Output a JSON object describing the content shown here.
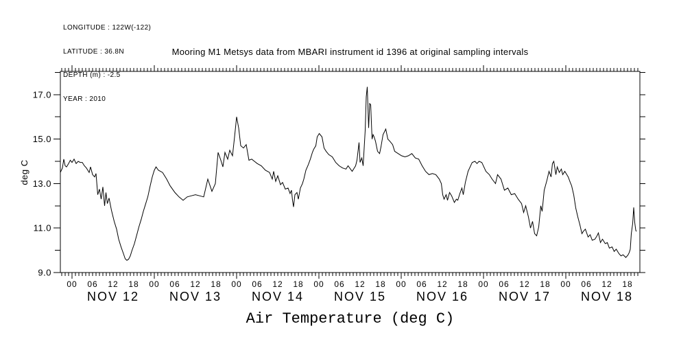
{
  "station_info": {
    "lines": [
      "LONGITUDE : 122W(-122)",
      "LATITUDE : 36.8N",
      "DEPTH (m) : -2.5",
      "YEAR : 2010"
    ]
  },
  "chart_data": {
    "type": "line",
    "title": "Mooring M1 Metsys data from MBARI instrument id 1396 at original sampling intervals",
    "xlabel": "Air Temperature (deg C)",
    "ylabel": "deg C",
    "line_color": "#000000",
    "background_color": "#ffffff",
    "grid": false,
    "legend": "none",
    "ylim": [
      9.0,
      18.05
    ],
    "x_unit": "hours since 2010-11-12 00:00",
    "xlim_hours": [
      -3.4,
      165.6
    ],
    "y_axis": {
      "ticks": [
        {
          "v": 9,
          "label": "9.0"
        },
        {
          "v": 10
        },
        {
          "v": 11,
          "label": "11.0"
        },
        {
          "v": 12
        },
        {
          "v": 13,
          "label": "13.0"
        },
        {
          "v": 14
        },
        {
          "v": 15,
          "label": "15.0"
        },
        {
          "v": 16
        },
        {
          "v": 17,
          "label": "17.0"
        },
        {
          "v": 18
        }
      ]
    },
    "x_axis": {
      "minor_tick_interval_hours": 1,
      "major_tick_interval_hours": 24,
      "hour_labels": [
        "00",
        "06",
        "12",
        "18"
      ],
      "hour_label_interval": 6,
      "days": [
        "NOV 12",
        "NOV 13",
        "NOV 14",
        "NOV 15",
        "NOV 16",
        "NOV 17",
        "NOV 18"
      ]
    },
    "series": [
      {
        "name": "air_temperature_deg_c",
        "points": [
          [
            -3.4,
            13.5
          ],
          [
            -2.8,
            13.7
          ],
          [
            -2.4,
            14.1
          ],
          [
            -2.0,
            13.8
          ],
          [
            -1.6,
            13.75
          ],
          [
            -1.0,
            13.9
          ],
          [
            -0.5,
            14.05
          ],
          [
            0,
            13.95
          ],
          [
            0.6,
            14.1
          ],
          [
            1.2,
            13.9
          ],
          [
            1.8,
            14.0
          ],
          [
            2.4,
            13.95
          ],
          [
            3.0,
            13.95
          ],
          [
            3.6,
            13.8
          ],
          [
            4.2,
            13.7
          ],
          [
            5.0,
            13.5
          ],
          [
            5.4,
            13.75
          ],
          [
            6.0,
            13.4
          ],
          [
            6.6,
            13.3
          ],
          [
            7.0,
            13.45
          ],
          [
            7.5,
            12.5
          ],
          [
            8.0,
            12.75
          ],
          [
            8.5,
            12.3
          ],
          [
            9.0,
            12.85
          ],
          [
            9.5,
            12.0
          ],
          [
            9.9,
            12.6
          ],
          [
            10.3,
            12.1
          ],
          [
            10.8,
            12.35
          ],
          [
            11.5,
            11.8
          ],
          [
            12.3,
            11.3
          ],
          [
            13.0,
            10.95
          ],
          [
            13.6,
            10.5
          ],
          [
            14.3,
            10.15
          ],
          [
            15.0,
            9.85
          ],
          [
            15.5,
            9.62
          ],
          [
            16.0,
            9.55
          ],
          [
            16.5,
            9.6
          ],
          [
            17.0,
            9.75
          ],
          [
            17.5,
            10.0
          ],
          [
            18.2,
            10.3
          ],
          [
            18.9,
            10.7
          ],
          [
            19.5,
            11.05
          ],
          [
            20.2,
            11.4
          ],
          [
            20.8,
            11.75
          ],
          [
            21.4,
            12.05
          ],
          [
            22.1,
            12.4
          ],
          [
            22.8,
            12.9
          ],
          [
            23.4,
            13.3
          ],
          [
            24.0,
            13.6
          ],
          [
            24.5,
            13.75
          ],
          [
            25.2,
            13.6
          ],
          [
            26.4,
            13.5
          ],
          [
            27.6,
            13.2
          ],
          [
            28.6,
            12.9
          ],
          [
            30.0,
            12.6
          ],
          [
            31.2,
            12.4
          ],
          [
            32.4,
            12.25
          ],
          [
            33.6,
            12.4
          ],
          [
            34.8,
            12.45
          ],
          [
            36.0,
            12.5
          ],
          [
            37.2,
            12.45
          ],
          [
            38.4,
            12.4
          ],
          [
            39.6,
            13.2
          ],
          [
            40.8,
            12.65
          ],
          [
            41.8,
            13.0
          ],
          [
            42.6,
            14.4
          ],
          [
            43.4,
            14.05
          ],
          [
            44.0,
            13.75
          ],
          [
            44.6,
            14.4
          ],
          [
            45.4,
            14.1
          ],
          [
            46.0,
            14.5
          ],
          [
            46.8,
            14.25
          ],
          [
            47.4,
            15.1
          ],
          [
            48.0,
            16.0
          ],
          [
            48.6,
            15.5
          ],
          [
            49.2,
            14.7
          ],
          [
            50.0,
            14.6
          ],
          [
            50.8,
            14.75
          ],
          [
            51.6,
            14.05
          ],
          [
            52.4,
            14.1
          ],
          [
            53.2,
            14.0
          ],
          [
            54.0,
            13.9
          ],
          [
            55.2,
            13.8
          ],
          [
            56.4,
            13.6
          ],
          [
            57.6,
            13.5
          ],
          [
            58.4,
            13.2
          ],
          [
            58.8,
            13.55
          ],
          [
            59.4,
            13.1
          ],
          [
            60.0,
            13.35
          ],
          [
            60.8,
            12.95
          ],
          [
            61.4,
            13.05
          ],
          [
            62.2,
            12.75
          ],
          [
            63.0,
            12.8
          ],
          [
            63.6,
            12.55
          ],
          [
            64.0,
            12.7
          ],
          [
            64.3,
            12.25
          ],
          [
            64.6,
            11.95
          ],
          [
            65.0,
            12.5
          ],
          [
            65.6,
            12.6
          ],
          [
            66.0,
            12.3
          ],
          [
            66.6,
            12.8
          ],
          [
            67.2,
            13.0
          ],
          [
            67.6,
            13.2
          ],
          [
            68.2,
            13.6
          ],
          [
            68.9,
            13.85
          ],
          [
            69.5,
            14.1
          ],
          [
            70.1,
            14.4
          ],
          [
            70.5,
            14.55
          ],
          [
            71.1,
            14.7
          ],
          [
            71.5,
            15.1
          ],
          [
            72.1,
            15.25
          ],
          [
            72.9,
            15.1
          ],
          [
            73.5,
            14.6
          ],
          [
            74.1,
            14.45
          ],
          [
            74.9,
            14.3
          ],
          [
            75.9,
            14.2
          ],
          [
            76.9,
            13.95
          ],
          [
            77.9,
            13.8
          ],
          [
            78.9,
            13.7
          ],
          [
            79.9,
            13.65
          ],
          [
            80.5,
            13.8
          ],
          [
            81.7,
            13.55
          ],
          [
            82.7,
            13.8
          ],
          [
            83.1,
            14.05
          ],
          [
            83.7,
            14.85
          ],
          [
            84.0,
            13.95
          ],
          [
            84.5,
            14.15
          ],
          [
            84.9,
            13.8
          ],
          [
            85.5,
            15.4
          ],
          [
            85.8,
            16.9
          ],
          [
            86.1,
            17.35
          ],
          [
            86.5,
            15.5
          ],
          [
            86.8,
            16.6
          ],
          [
            87.1,
            16.55
          ],
          [
            87.5,
            15.0
          ],
          [
            87.8,
            15.2
          ],
          [
            88.1,
            15.1
          ],
          [
            88.5,
            14.9
          ],
          [
            89.1,
            14.45
          ],
          [
            89.7,
            14.35
          ],
          [
            90.1,
            14.65
          ],
          [
            90.7,
            15.2
          ],
          [
            91.5,
            15.45
          ],
          [
            92.1,
            15.0
          ],
          [
            92.7,
            14.9
          ],
          [
            93.5,
            14.75
          ],
          [
            94.1,
            14.45
          ],
          [
            95.1,
            14.35
          ],
          [
            96.1,
            14.25
          ],
          [
            97.1,
            14.2
          ],
          [
            98.1,
            14.25
          ],
          [
            99.1,
            14.35
          ],
          [
            100.1,
            14.15
          ],
          [
            101.1,
            14.1
          ],
          [
            102.1,
            13.8
          ],
          [
            103.1,
            13.55
          ],
          [
            104.1,
            13.4
          ],
          [
            105.1,
            13.45
          ],
          [
            106.1,
            13.4
          ],
          [
            107.1,
            13.2
          ],
          [
            107.7,
            13.0
          ],
          [
            108.1,
            12.5
          ],
          [
            108.5,
            12.3
          ],
          [
            109.1,
            12.5
          ],
          [
            109.5,
            12.25
          ],
          [
            110.1,
            12.6
          ],
          [
            110.7,
            12.45
          ],
          [
            111.5,
            12.15
          ],
          [
            112.1,
            12.3
          ],
          [
            112.5,
            12.25
          ],
          [
            113.1,
            12.55
          ],
          [
            113.7,
            12.8
          ],
          [
            114.1,
            12.5
          ],
          [
            114.7,
            13.05
          ],
          [
            115.5,
            13.55
          ],
          [
            116.1,
            13.75
          ],
          [
            116.7,
            13.95
          ],
          [
            117.5,
            14.0
          ],
          [
            118.1,
            13.9
          ],
          [
            118.7,
            14.0
          ],
          [
            119.5,
            13.95
          ],
          [
            120.1,
            13.75
          ],
          [
            120.7,
            13.55
          ],
          [
            121.7,
            13.4
          ],
          [
            122.5,
            13.2
          ],
          [
            123.5,
            13.0
          ],
          [
            124.1,
            13.4
          ],
          [
            125.1,
            13.2
          ],
          [
            126.1,
            12.7
          ],
          [
            127.1,
            12.8
          ],
          [
            128.1,
            12.5
          ],
          [
            129.1,
            12.55
          ],
          [
            130.1,
            12.3
          ],
          [
            131.1,
            12.1
          ],
          [
            131.7,
            11.7
          ],
          [
            132.3,
            12.0
          ],
          [
            133.1,
            11.5
          ],
          [
            133.7,
            11.0
          ],
          [
            134.3,
            11.3
          ],
          [
            134.9,
            10.75
          ],
          [
            135.5,
            10.65
          ],
          [
            136.1,
            11.05
          ],
          [
            136.7,
            12.0
          ],
          [
            137.1,
            11.75
          ],
          [
            137.7,
            12.7
          ],
          [
            138.5,
            13.15
          ],
          [
            139.1,
            13.55
          ],
          [
            139.7,
            13.3
          ],
          [
            140.1,
            13.9
          ],
          [
            140.5,
            14.0
          ],
          [
            141.1,
            13.4
          ],
          [
            141.5,
            13.75
          ],
          [
            142.1,
            13.5
          ],
          [
            142.7,
            13.65
          ],
          [
            143.1,
            13.4
          ],
          [
            143.7,
            13.55
          ],
          [
            144.3,
            13.4
          ],
          [
            144.7,
            13.3
          ],
          [
            145.3,
            13.05
          ],
          [
            145.7,
            12.9
          ],
          [
            146.3,
            12.5
          ],
          [
            146.9,
            11.9
          ],
          [
            147.5,
            11.5
          ],
          [
            148.1,
            11.15
          ],
          [
            148.7,
            10.75
          ],
          [
            149.1,
            10.85
          ],
          [
            149.7,
            10.95
          ],
          [
            150.5,
            10.6
          ],
          [
            151.1,
            10.7
          ],
          [
            151.7,
            10.45
          ],
          [
            152.5,
            10.5
          ],
          [
            153.1,
            10.65
          ],
          [
            153.5,
            10.78
          ],
          [
            154.1,
            10.35
          ],
          [
            154.7,
            10.5
          ],
          [
            155.5,
            10.3
          ],
          [
            156.1,
            10.35
          ],
          [
            156.7,
            10.1
          ],
          [
            157.5,
            10.15
          ],
          [
            158.1,
            9.95
          ],
          [
            158.7,
            10.05
          ],
          [
            159.5,
            9.85
          ],
          [
            160.1,
            9.75
          ],
          [
            160.7,
            9.8
          ],
          [
            161.5,
            9.68
          ],
          [
            162.1,
            9.78
          ],
          [
            162.5,
            9.9
          ],
          [
            162.8,
            10.05
          ],
          [
            163.1,
            10.75
          ],
          [
            163.5,
            11.2
          ],
          [
            163.8,
            11.93
          ],
          [
            164.1,
            11.25
          ],
          [
            164.4,
            10.9
          ],
          [
            164.6,
            10.85
          ]
        ]
      }
    ]
  }
}
